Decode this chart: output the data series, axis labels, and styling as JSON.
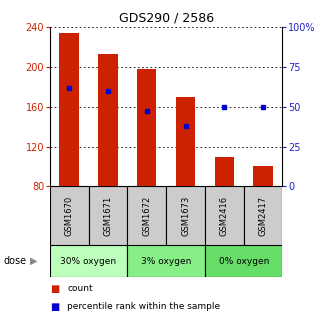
{
  "title": "GDS290 / 2586",
  "samples": [
    "GSM1670",
    "GSM1671",
    "GSM1672",
    "GSM1673",
    "GSM2416",
    "GSM2417"
  ],
  "counts": [
    234,
    213,
    198,
    170,
    110,
    101
  ],
  "percentiles": [
    62,
    60,
    47,
    38,
    50,
    50
  ],
  "ylim_left": [
    80,
    240
  ],
  "ylim_right": [
    0,
    100
  ],
  "yticks_left": [
    80,
    120,
    160,
    200,
    240
  ],
  "yticks_right": [
    0,
    25,
    50,
    75,
    100
  ],
  "bar_color": "#cc2200",
  "dot_color": "#0000cc",
  "left_tick_color": "#cc2200",
  "right_tick_color": "#2222cc",
  "sample_box_color": "#cccccc",
  "bar_width": 0.5,
  "group_defs": [
    [
      0,
      1,
      "30% oxygen",
      "#bbffbb"
    ],
    [
      2,
      3,
      "3% oxygen",
      "#88ee88"
    ],
    [
      4,
      5,
      "0% oxygen",
      "#66dd66"
    ]
  ]
}
